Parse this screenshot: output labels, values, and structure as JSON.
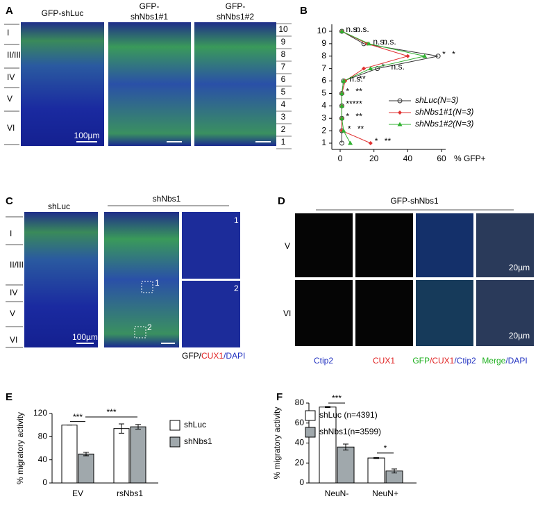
{
  "panel_labels": [
    "A",
    "B",
    "C",
    "D",
    "E",
    "F"
  ],
  "panel_a": {
    "titles": [
      [
        "GFP-shLuc"
      ],
      [
        "GFP-",
        "shNbs1#1"
      ],
      [
        "GFP-",
        "shNbs1#2"
      ]
    ],
    "layers": [
      "I",
      "II/III",
      "IV",
      "V",
      "VI"
    ],
    "scale_bar": "100µm",
    "bins": [
      "10",
      "9",
      "8",
      "7",
      "6",
      "5",
      "4",
      "3",
      "2",
      "1"
    ]
  },
  "panel_c": {
    "titles": [
      "shLuc",
      "shNbs1"
    ],
    "layers": [
      "I",
      "II/III",
      "IV",
      "V",
      "VI"
    ],
    "scale_bar": "100µm",
    "insets": [
      "1",
      "2"
    ],
    "stain": [
      "GFP/",
      "CUX1",
      "/DAPI"
    ]
  },
  "panel_d": {
    "title": "GFP-shNbs1",
    "rows": [
      "V",
      "VI"
    ],
    "scale_bar": "20µm",
    "columns": [
      [
        "Ctip2"
      ],
      [
        "CUX1"
      ],
      [
        "GFP",
        "/CUX1",
        "/Ctip2"
      ],
      [
        "Merge",
        "/DAPI"
      ]
    ]
  },
  "chart_data": [
    {
      "type": "line",
      "orientation": "horizontal",
      "xlabel": "% GFP+",
      "categories": [
        "1",
        "2",
        "3",
        "4",
        "5",
        "6",
        "7",
        "8",
        "9",
        "10"
      ],
      "xlim": [
        0,
        60
      ],
      "xticks": [
        0,
        20,
        40,
        60
      ],
      "series": [
        {
          "name": "shLuc(N=3)",
          "color": "#333333",
          "marker": "circle",
          "values": [
            1,
            1,
            1,
            1,
            1,
            2,
            22,
            58,
            14,
            1
          ]
        },
        {
          "name": "shNbs1#1(N=3)",
          "color": "#e03030",
          "marker": "diamond",
          "values": [
            18,
            1,
            1,
            1,
            1,
            3,
            14,
            40,
            16,
            1
          ],
          "significance": [
            "*",
            "*",
            "*",
            "***",
            "*",
            "n.s.",
            "*",
            "*",
            "n.s.",
            "n.s."
          ]
        },
        {
          "name": "shNbs1#2(N=3)",
          "color": "#30b030",
          "marker": "triangle",
          "values": [
            6,
            2,
            1,
            1,
            1,
            2,
            18,
            50,
            17,
            1
          ],
          "significance": [
            "**",
            "**",
            "**",
            "**",
            "**",
            "**",
            "n.s.",
            "*",
            "n.s.",
            "n.s."
          ]
        }
      ]
    },
    {
      "type": "bar",
      "ylabel": "% migratory activity",
      "categories": [
        "EV",
        "rsNbs1"
      ],
      "ylim": [
        0,
        120
      ],
      "yticks": [
        0,
        40,
        80,
        120
      ],
      "legend": "right",
      "series": [
        {
          "name": "shLuc",
          "color": "#ffffff",
          "values": [
            100,
            94
          ],
          "errors": [
            0,
            8
          ]
        },
        {
          "name": "shNbs1",
          "color": "#a0a8ac",
          "values": [
            50,
            97
          ],
          "errors": [
            3,
            4
          ]
        }
      ],
      "annotations": [
        "***",
        "***"
      ]
    },
    {
      "type": "bar",
      "ylabel": "% migratory activity",
      "categories": [
        "NeuN-",
        "NeuN+"
      ],
      "ylim": [
        0,
        80
      ],
      "yticks": [
        0,
        20,
        40,
        60,
        80
      ],
      "legend": "right",
      "series": [
        {
          "name": "shLuc (n=4391)",
          "color": "#ffffff",
          "values": [
            76,
            25
          ],
          "errors": [
            0.5,
            0.5
          ]
        },
        {
          "name": "shNbs1(n=3599)",
          "color": "#a0a8ac",
          "values": [
            36,
            12
          ],
          "errors": [
            3,
            2
          ]
        }
      ],
      "annotations": [
        "***",
        "*"
      ]
    }
  ]
}
